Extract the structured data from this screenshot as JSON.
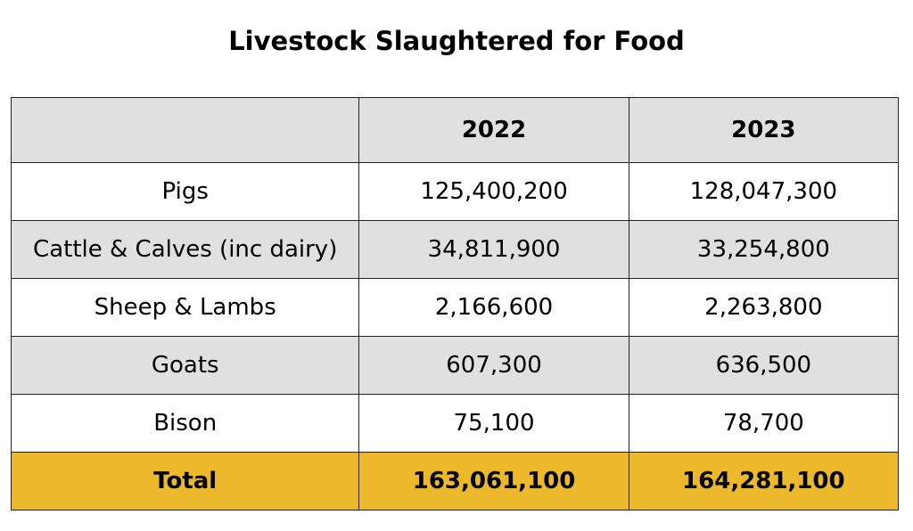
{
  "colors": {
    "header_bg": "#e0e0e0",
    "row_white": "#ffffff",
    "row_gray": "#e0e0e0",
    "total_bg": "#ecb92d",
    "border": "#222222"
  },
  "chart_data": {
    "type": "table",
    "title": "Livestock Slaughtered for Food",
    "columns": [
      "",
      "2022",
      "2023"
    ],
    "rows": [
      {
        "label": "Pigs",
        "values": [
          "125,400,200",
          "128,047,300"
        ]
      },
      {
        "label": "Cattle & Calves (inc dairy)",
        "values": [
          "34,811,900",
          "33,254,800"
        ]
      },
      {
        "label": "Sheep & Lambs",
        "values": [
          "2,166,600",
          "2,263,800"
        ]
      },
      {
        "label": "Goats",
        "values": [
          "607,300",
          "636,500"
        ]
      },
      {
        "label": "Bison",
        "values": [
          "75,100",
          "78,700"
        ]
      }
    ],
    "total": {
      "label": "Total",
      "values": [
        "163,061,100",
        "164,281,100"
      ]
    }
  }
}
